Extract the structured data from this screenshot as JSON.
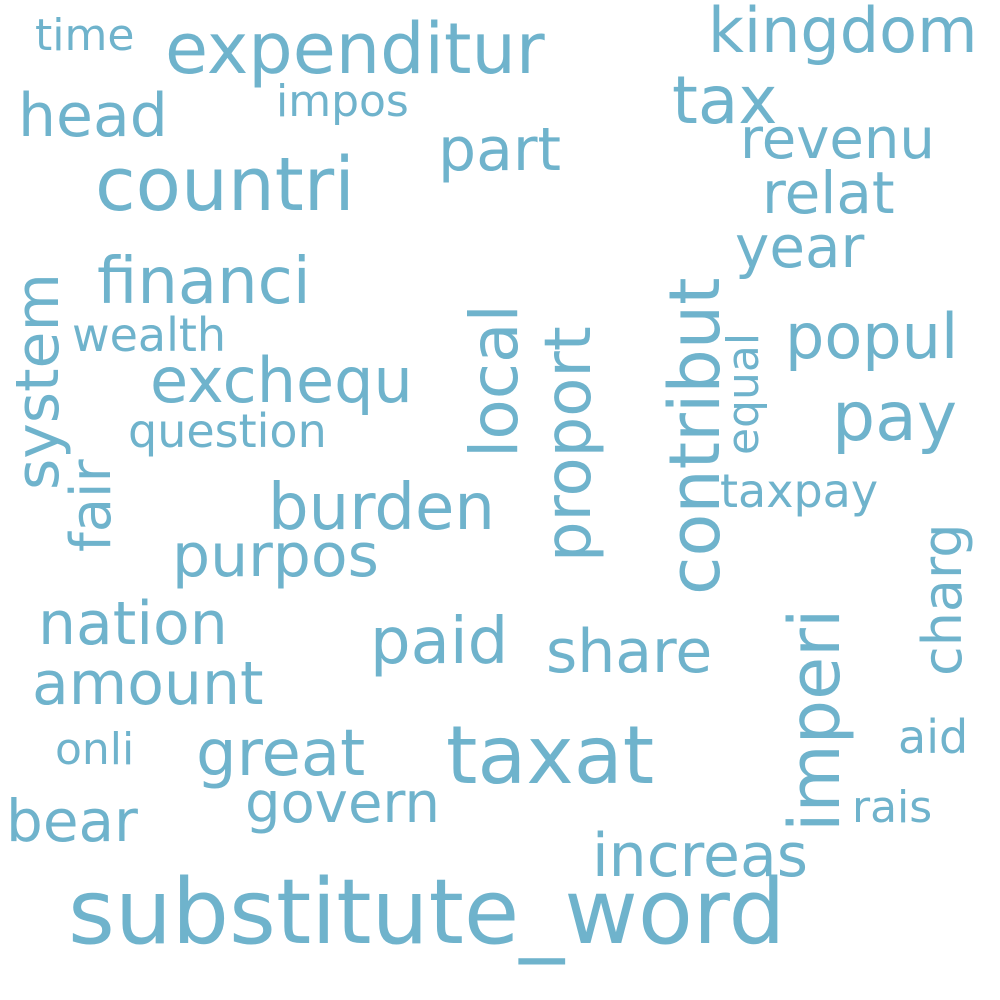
{
  "colors": {
    "background": "#ffffff",
    "word": "#6fb3cc"
  },
  "words": [
    {
      "text": "substitute_word"
    },
    {
      "text": "taxat"
    },
    {
      "text": "countri"
    },
    {
      "text": "contribut"
    },
    {
      "text": "expenditur"
    },
    {
      "text": "imperi"
    },
    {
      "text": "kingdom"
    },
    {
      "text": "tax"
    },
    {
      "text": "financi"
    },
    {
      "text": "local"
    },
    {
      "text": "proport"
    },
    {
      "text": "burden"
    },
    {
      "text": "great"
    },
    {
      "text": "exchequ"
    },
    {
      "text": "system"
    },
    {
      "text": "part"
    },
    {
      "text": "revenu"
    },
    {
      "text": "relat"
    },
    {
      "text": "year"
    },
    {
      "text": "popul"
    },
    {
      "text": "pay"
    },
    {
      "text": "head"
    },
    {
      "text": "purpos"
    },
    {
      "text": "paid"
    },
    {
      "text": "share"
    },
    {
      "text": "nation"
    },
    {
      "text": "amount"
    },
    {
      "text": "govern"
    },
    {
      "text": "increas"
    },
    {
      "text": "bear"
    },
    {
      "text": "fair"
    },
    {
      "text": "charg"
    },
    {
      "text": "question"
    },
    {
      "text": "wealth"
    },
    {
      "text": "impos"
    },
    {
      "text": "time"
    },
    {
      "text": "equal"
    },
    {
      "text": "taxpay"
    },
    {
      "text": "onli"
    },
    {
      "text": "aid"
    },
    {
      "text": "rais"
    }
  ]
}
